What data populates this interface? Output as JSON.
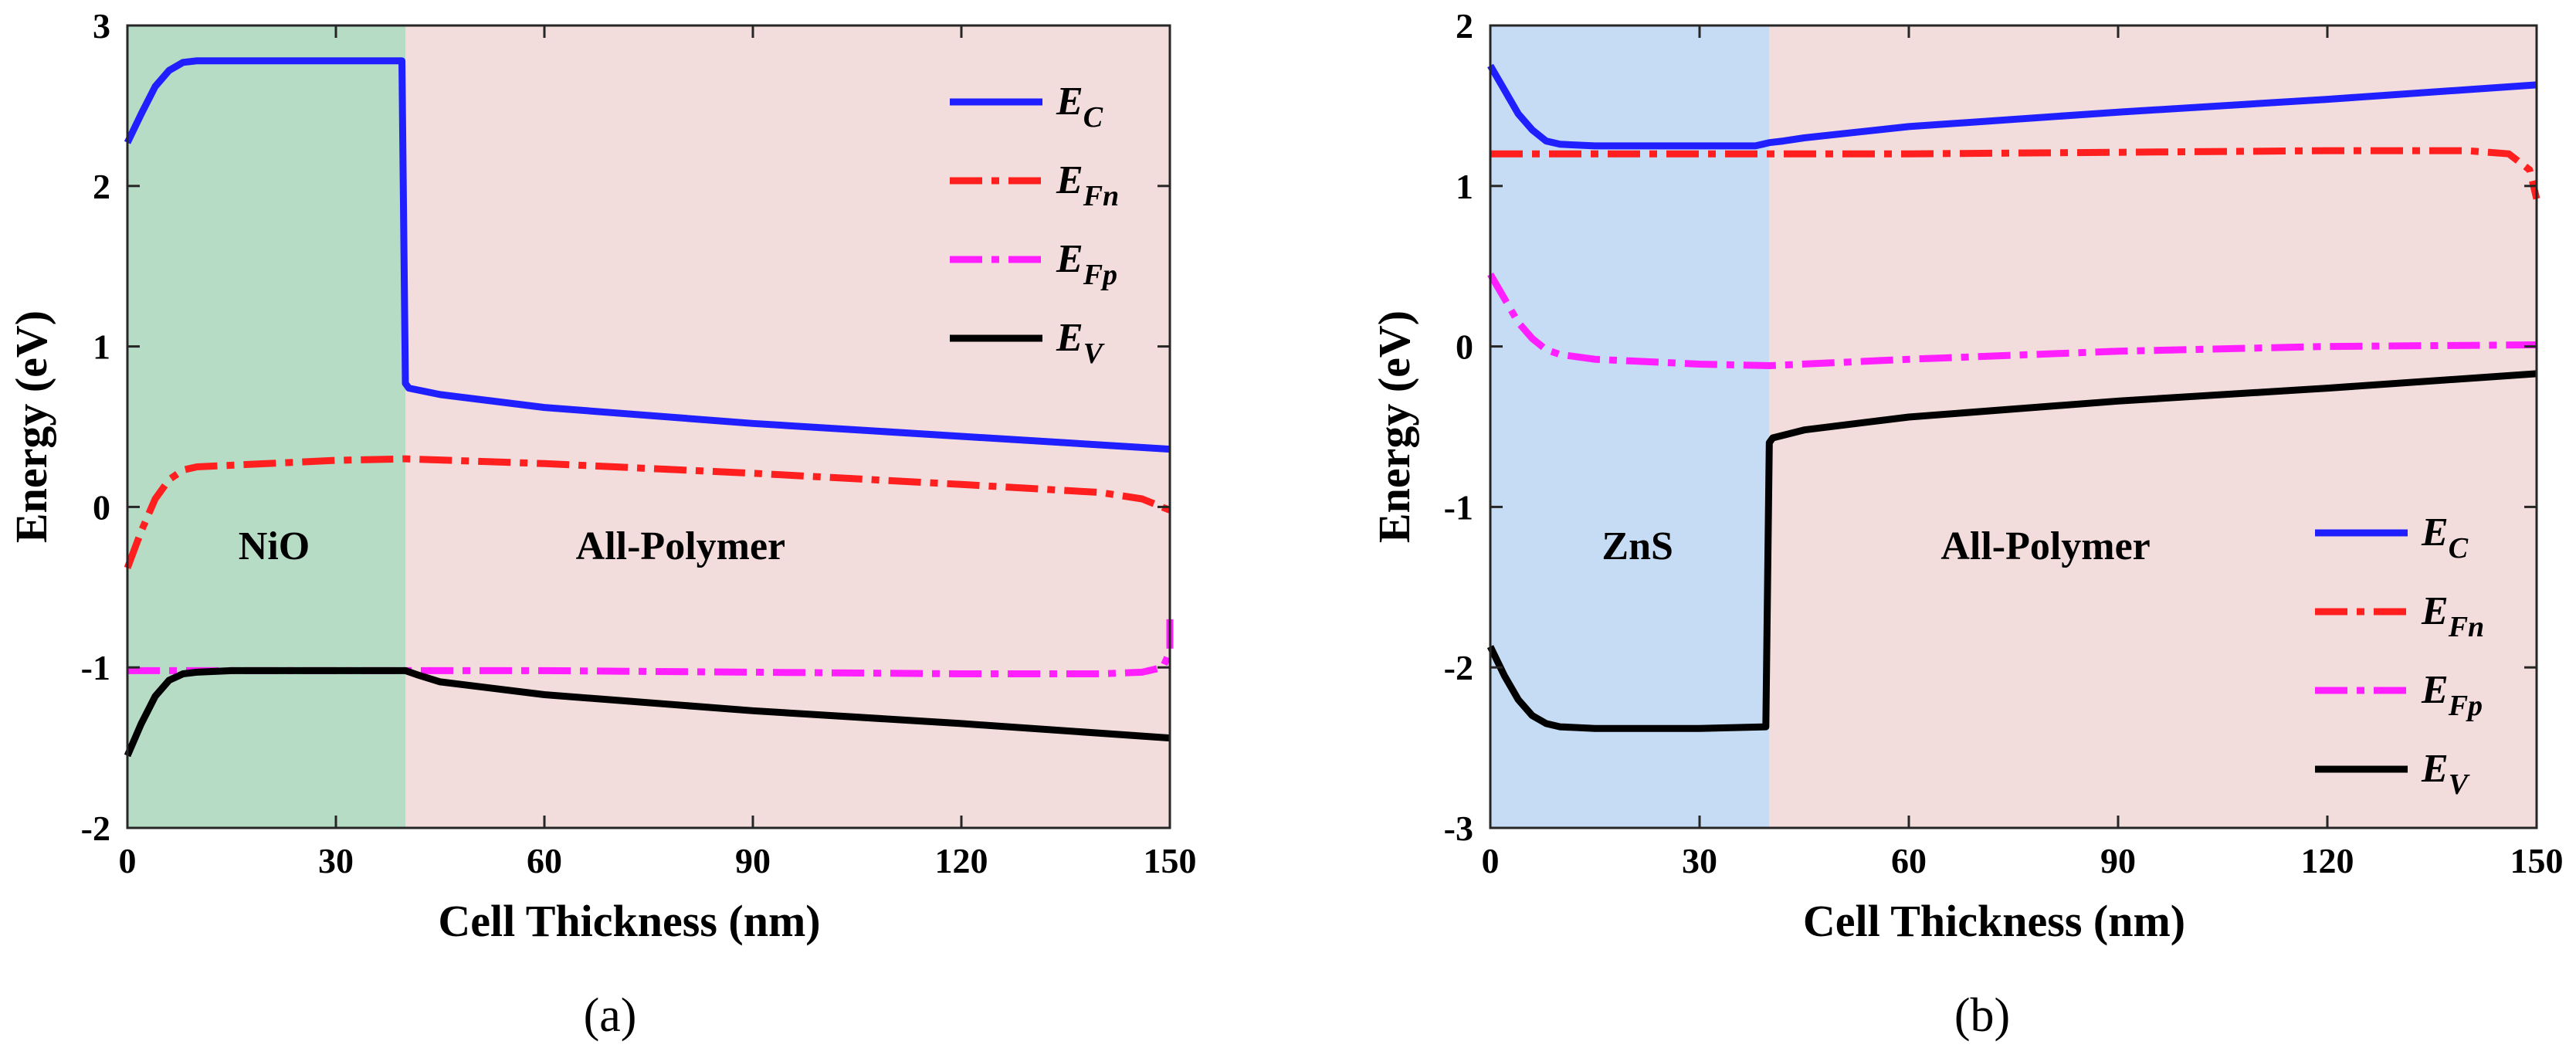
{
  "chart_data": [
    {
      "type": "line",
      "panel_label": "(a)",
      "xlabel": "Cell Thickness (nm)",
      "ylabel": "Energy (eV)",
      "xlim": [
        0,
        150
      ],
      "ylim": [
        -2,
        3
      ],
      "xticks": [
        0,
        30,
        60,
        90,
        120,
        150
      ],
      "yticks": [
        -2,
        -1,
        0,
        1,
        2,
        3
      ],
      "regions": [
        {
          "label": "NiO",
          "x_range": [
            0,
            40
          ],
          "color": "#b6dcc6"
        },
        {
          "label": "All-Polymer",
          "x_range": [
            40,
            150
          ],
          "color": "#f3dcdc"
        }
      ],
      "legend_position": "top-right",
      "series": [
        {
          "name": "E",
          "subscript": "C",
          "color": "#1f1fff",
          "dash": "solid",
          "x": [
            0,
            2,
            4,
            6,
            8,
            10,
            15,
            20,
            30,
            39.5,
            40,
            40.5,
            45,
            60,
            90,
            120,
            150
          ],
          "y": [
            2.27,
            2.45,
            2.62,
            2.72,
            2.77,
            2.78,
            2.78,
            2.78,
            2.78,
            2.78,
            0.77,
            0.74,
            0.7,
            0.62,
            0.52,
            0.44,
            0.36
          ]
        },
        {
          "name": "E",
          "subscript": "Fn",
          "color": "#ff1f1f",
          "dash": "dashdot",
          "x": [
            0,
            2,
            4,
            6,
            8,
            10,
            20,
            30,
            40,
            60,
            90,
            120,
            140,
            146,
            150
          ],
          "y": [
            -0.38,
            -0.15,
            0.05,
            0.17,
            0.23,
            0.25,
            0.27,
            0.29,
            0.3,
            0.27,
            0.21,
            0.14,
            0.09,
            0.05,
            -0.02
          ]
        },
        {
          "name": "E",
          "subscript": "Fp",
          "color": "#ff1fff",
          "dash": "dashdot",
          "x": [
            0,
            10,
            20,
            30,
            40,
            60,
            90,
            120,
            140,
            146,
            149,
            150,
            150
          ],
          "y": [
            -1.02,
            -1.02,
            -1.02,
            -1.02,
            -1.02,
            -1.02,
            -1.03,
            -1.04,
            -1.04,
            -1.03,
            -1.0,
            -0.9,
            -0.7
          ]
        },
        {
          "name": "E",
          "subscript": "V",
          "color": "#000000",
          "dash": "solid",
          "x": [
            0,
            2,
            4,
            6,
            8,
            10,
            15,
            20,
            30,
            40,
            42,
            45,
            60,
            90,
            120,
            150
          ],
          "y": [
            -1.55,
            -1.35,
            -1.18,
            -1.08,
            -1.04,
            -1.03,
            -1.02,
            -1.02,
            -1.02,
            -1.02,
            -1.05,
            -1.09,
            -1.17,
            -1.27,
            -1.35,
            -1.44
          ]
        }
      ]
    },
    {
      "type": "line",
      "panel_label": "(b)",
      "xlabel": "Cell Thickness (nm)",
      "ylabel": "Energy (eV)",
      "xlim": [
        0,
        150
      ],
      "ylim": [
        -3,
        2
      ],
      "xticks": [
        0,
        30,
        60,
        90,
        120,
        150
      ],
      "yticks": [
        -3,
        -2,
        -1,
        0,
        1,
        2
      ],
      "regions": [
        {
          "label": "ZnS",
          "x_range": [
            0,
            40
          ],
          "color": "#c6dcf4"
        },
        {
          "label": "All-Polymer",
          "x_range": [
            40,
            150
          ],
          "color": "#f3dcdc"
        }
      ],
      "legend_position": "bottom-right",
      "series": [
        {
          "name": "E",
          "subscript": "C",
          "color": "#1f1fff",
          "dash": "solid",
          "x": [
            0,
            2,
            4,
            6,
            8,
            10,
            15,
            20,
            30,
            38,
            40,
            42,
            45,
            60,
            90,
            120,
            150
          ],
          "y": [
            1.75,
            1.6,
            1.45,
            1.35,
            1.28,
            1.26,
            1.25,
            1.25,
            1.25,
            1.25,
            1.27,
            1.28,
            1.3,
            1.37,
            1.46,
            1.54,
            1.63
          ]
        },
        {
          "name": "E",
          "subscript": "Fn",
          "color": "#ff1f1f",
          "dash": "dashdot",
          "x": [
            0,
            20,
            40,
            60,
            90,
            120,
            140,
            146,
            149,
            150
          ],
          "y": [
            1.2,
            1.2,
            1.2,
            1.2,
            1.21,
            1.22,
            1.22,
            1.2,
            1.1,
            0.92
          ]
        },
        {
          "name": "E",
          "subscript": "Fp",
          "color": "#ff1fff",
          "dash": "dashdot",
          "x": [
            0,
            2,
            4,
            6,
            8,
            10,
            15,
            20,
            30,
            40,
            60,
            90,
            120,
            150
          ],
          "y": [
            0.45,
            0.3,
            0.15,
            0.05,
            -0.02,
            -0.05,
            -0.08,
            -0.09,
            -0.11,
            -0.12,
            -0.08,
            -0.03,
            0.0,
            0.01
          ]
        },
        {
          "name": "E",
          "subscript": "V",
          "color": "#000000",
          "dash": "solid",
          "x": [
            0,
            2,
            4,
            6,
            8,
            10,
            15,
            20,
            30,
            39.5,
            40,
            40.5,
            45,
            60,
            90,
            120,
            150
          ],
          "y": [
            -1.87,
            -2.05,
            -2.2,
            -2.3,
            -2.35,
            -2.37,
            -2.38,
            -2.38,
            -2.38,
            -2.37,
            -0.6,
            -0.57,
            -0.52,
            -0.44,
            -0.34,
            -0.26,
            -0.17
          ]
        }
      ]
    }
  ]
}
